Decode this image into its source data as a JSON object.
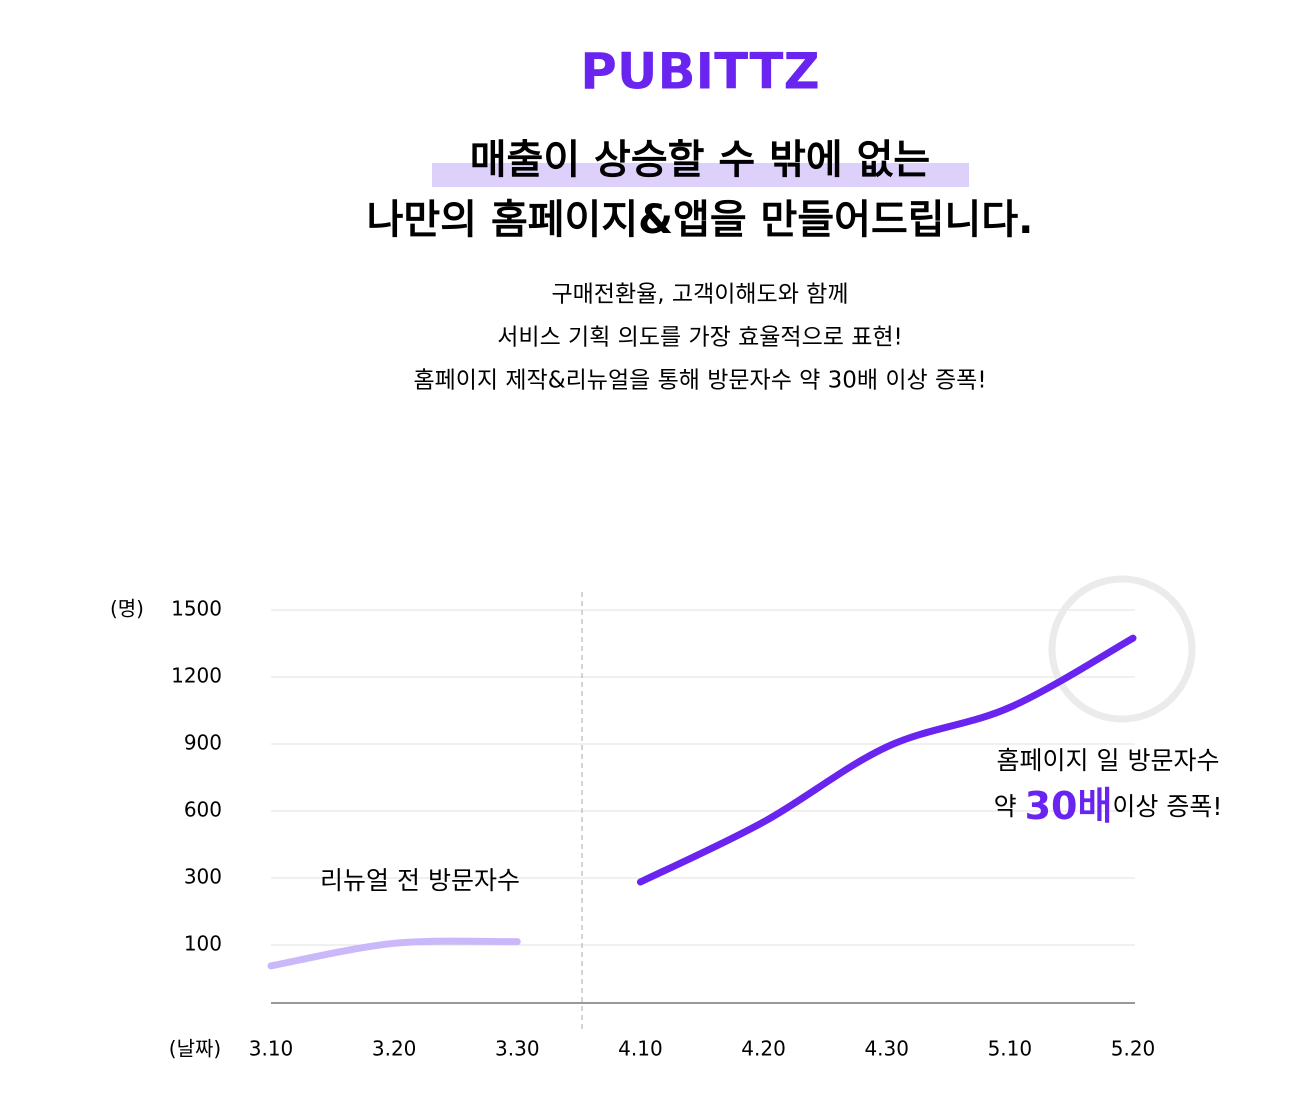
{
  "header": {
    "logo": "PUBITTZ",
    "headline_1": "매출이 상승할 수 밖에 없는",
    "headline_2": "나만의 홈페이지&앱을 만들어드립니다.",
    "lines": [
      "구매전환율, 고객이해도와 함께",
      "서비스 기획 의도를 가장 효율적으로 표현!",
      "홈페이지 제작&리뉴얼을 통해  방문자수 약 30배 이상 증폭!"
    ]
  },
  "chart_data": {
    "type": "line",
    "y_label": "(명)",
    "x_label": "(날짜)",
    "categories": [
      "3.10",
      "3.20",
      "3.30",
      "4.10",
      "4.20",
      "4.30",
      "5.10",
      "5.20"
    ],
    "series": [
      {
        "name": "리뉴얼 전 방문자수",
        "color": "#cbb8fb",
        "values": [
          64,
          105,
          110,
          null,
          null,
          null,
          null,
          null
        ]
      },
      {
        "name": "홈페이지 일 방문자수",
        "color": "#6a24f0",
        "values": [
          null,
          null,
          null,
          288,
          551,
          887,
          1064,
          1374
        ]
      }
    ],
    "annotation": {
      "prefix": "약",
      "highlight": "30배",
      "suffix": "이상 증폭!"
    },
    "ylim": [
      0,
      1500
    ],
    "yticks": [
      100,
      300,
      600,
      900,
      1200,
      1500
    ],
    "grid": true
  }
}
